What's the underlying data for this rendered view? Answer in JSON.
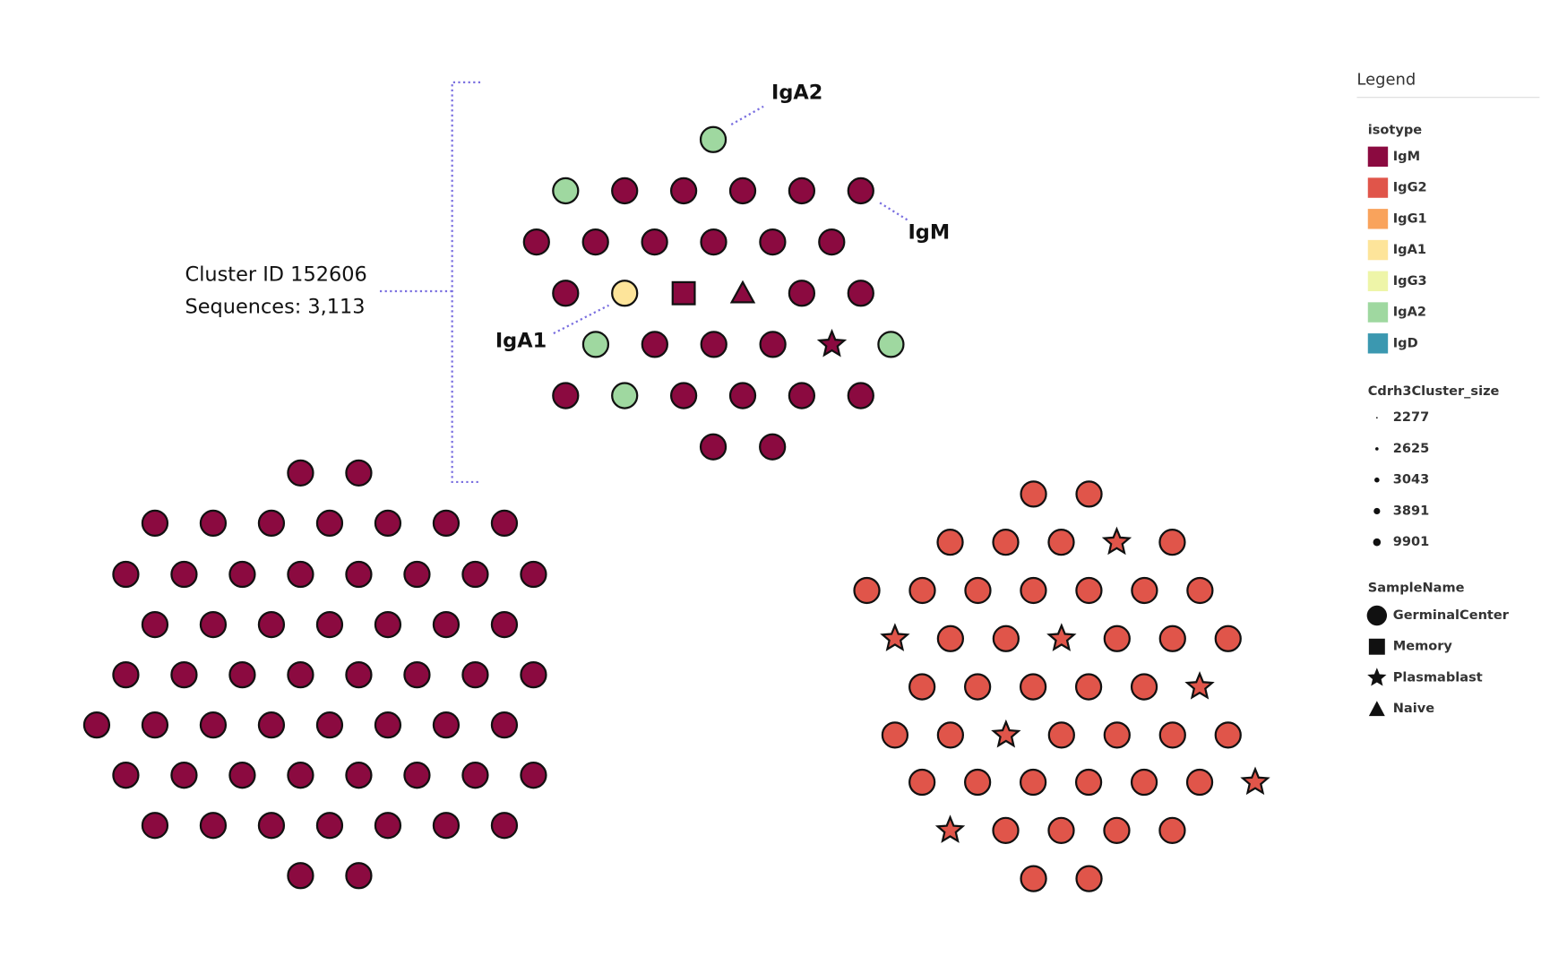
{
  "annotation": {
    "cluster_id": "Cluster ID 152606",
    "sequences": "Sequences: 3,113"
  },
  "callouts": [
    "IgA2",
    "IgM",
    "IgA1"
  ],
  "legend": {
    "title": "Legend",
    "isotype": {
      "title": "isotype",
      "items": [
        {
          "label": "IgM",
          "color": "#8b0a40"
        },
        {
          "label": "IgG2",
          "color": "#e0554a"
        },
        {
          "label": "IgG1",
          "color": "#f9a35c"
        },
        {
          "label": "IgA1",
          "color": "#fde49a"
        },
        {
          "label": "IgG3",
          "color": "#eef5a8"
        },
        {
          "label": "IgA2",
          "color": "#9fd8a0"
        },
        {
          "label": "IgD",
          "color": "#3b98b0"
        }
      ]
    },
    "size": {
      "title": "Cdrh3Cluster_size",
      "items": [
        "2277",
        "2625",
        "3043",
        "3891",
        "9901"
      ]
    },
    "sample": {
      "title": "SampleName",
      "items": [
        "GerminalCenter",
        "Memory",
        "Plasmablast",
        "Naive"
      ]
    }
  }
}
